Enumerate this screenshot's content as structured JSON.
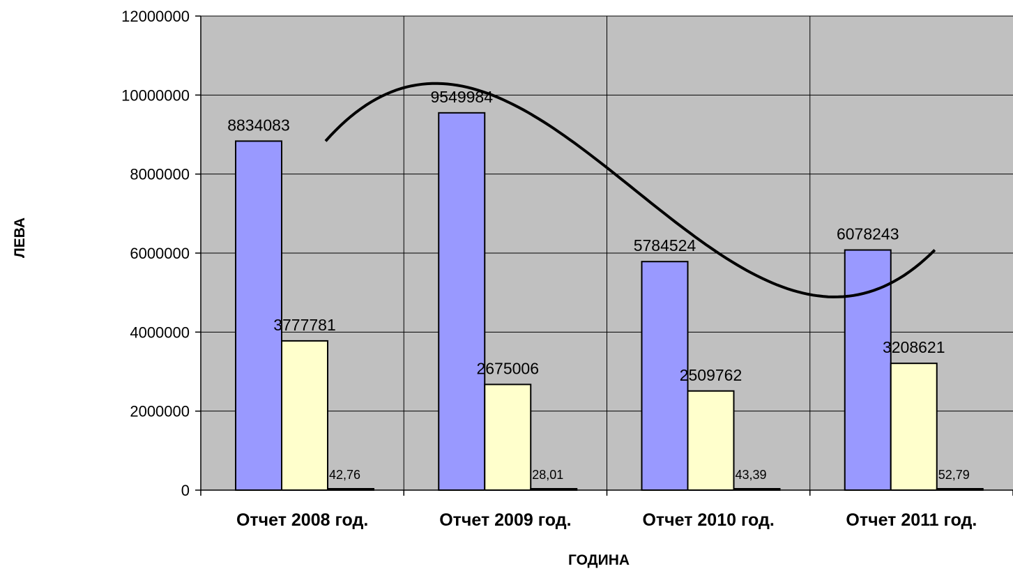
{
  "chart_data": {
    "type": "bar",
    "title": "",
    "xlabel": "ГОДИНА",
    "ylabel": "ЛЕВА",
    "ylim": [
      0,
      12000000
    ],
    "yticks": [
      0,
      2000000,
      4000000,
      6000000,
      8000000,
      10000000,
      12000000
    ],
    "ytick_labels": [
      "0",
      "2000000",
      "4000000",
      "6000000",
      "8000000",
      "10000000",
      "12000000"
    ],
    "grid": true,
    "legend": "none",
    "categories": [
      "Отчет 2008 год.",
      "Отчет 2009 год.",
      "Отчет 2010 год.",
      "Отчет 2011 год."
    ],
    "series": [
      {
        "values": [
          8834083,
          9549984,
          5784524,
          6078243
        ],
        "labels": [
          "8834083",
          "9549984",
          "5784524",
          "6078243"
        ],
        "color": "#9999FF"
      },
      {
        "values": [
          3777781,
          2675006,
          2509762,
          3208621
        ],
        "labels": [
          "3777781",
          "2675006",
          "2509762",
          "3208621"
        ],
        "color": "#FFFFCC"
      },
      {
        "values": [
          42.76,
          28.01,
          43.39,
          52.79
        ],
        "labels": [
          "42,76",
          "28,01",
          "43,39",
          "52,79"
        ],
        "color": "#000000"
      }
    ],
    "trendline": {
      "type": "polynomial",
      "series_index": 0,
      "color": "#000000"
    },
    "plot_background": "#C0C0C0",
    "gridline_color": "#000000"
  }
}
